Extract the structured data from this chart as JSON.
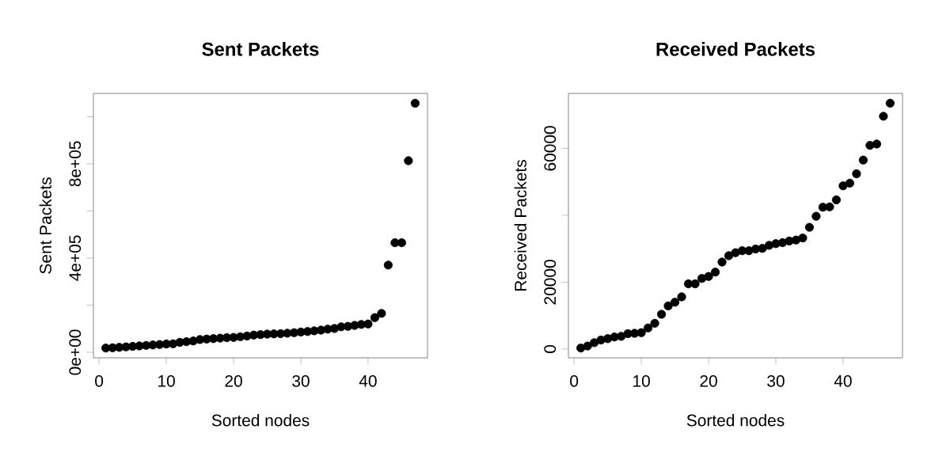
{
  "chart_data": [
    {
      "type": "scatter",
      "title": "Sent Packets",
      "xlabel": "Sorted nodes",
      "ylabel": "Sent Packets",
      "marker": "circle",
      "color": "#000000",
      "x": [
        1,
        2,
        3,
        4,
        5,
        6,
        7,
        8,
        9,
        10,
        11,
        12,
        13,
        14,
        15,
        16,
        17,
        18,
        19,
        20,
        21,
        22,
        23,
        24,
        25,
        26,
        27,
        28,
        29,
        30,
        31,
        32,
        33,
        34,
        35,
        36,
        37,
        38,
        39,
        40,
        41,
        42,
        43,
        44,
        45,
        46,
        47
      ],
      "values": [
        18000,
        19000,
        21000,
        23000,
        25000,
        27000,
        29000,
        31000,
        33000,
        35000,
        36000,
        42000,
        45000,
        48000,
        54000,
        56000,
        58000,
        60000,
        62000,
        63000,
        66000,
        69000,
        73000,
        75000,
        77000,
        78000,
        79000,
        81000,
        83000,
        86000,
        88000,
        91000,
        94000,
        98000,
        101000,
        108000,
        110000,
        114000,
        118000,
        120000,
        147000,
        165000,
        370000,
        465000,
        465000,
        813000,
        1057000
      ],
      "xlim": [
        -0.84,
        48.84
      ],
      "ylim": [
        -23600,
        1098700
      ],
      "xticks": [
        0,
        10,
        20,
        30,
        40
      ],
      "yticks": [
        {
          "value": 0,
          "label": "0e+00"
        },
        {
          "value": 200000,
          "label": null
        },
        {
          "value": 400000,
          "label": "4e+05"
        },
        {
          "value": 600000,
          "label": null
        },
        {
          "value": 800000,
          "label": "8e+05"
        },
        {
          "value": 1000000,
          "label": null
        }
      ]
    },
    {
      "type": "scatter",
      "title": "Received Packets",
      "xlabel": "Sorted nodes",
      "ylabel": "Received Packets",
      "marker": "circle",
      "color": "#000000",
      "x": [
        1,
        2,
        3,
        4,
        5,
        6,
        7,
        8,
        9,
        10,
        11,
        12,
        13,
        14,
        15,
        16,
        17,
        18,
        19,
        20,
        21,
        22,
        23,
        24,
        25,
        26,
        27,
        28,
        29,
        30,
        31,
        32,
        33,
        34,
        35,
        36,
        37,
        38,
        39,
        40,
        41,
        42,
        43,
        44,
        45,
        46,
        47
      ],
      "values": [
        300,
        900,
        1900,
        2700,
        3100,
        3600,
        3800,
        4600,
        4700,
        4900,
        6300,
        7700,
        10400,
        12900,
        14000,
        15600,
        19500,
        19500,
        21100,
        21700,
        23000,
        26000,
        27900,
        28800,
        29400,
        29400,
        29900,
        30100,
        31000,
        31500,
        31800,
        32300,
        32600,
        33200,
        36400,
        39700,
        42400,
        42500,
        44600,
        48800,
        49600,
        52400,
        56500,
        60900,
        61300,
        69600,
        73500
      ],
      "xlim": [
        -0.84,
        48.84
      ],
      "ylim": [
        -2628,
        76428
      ],
      "xticks": [
        0,
        10,
        20,
        30,
        40
      ],
      "yticks": [
        0,
        20000,
        {
          "value": 40000,
          "label": null
        },
        60000
      ]
    }
  ]
}
